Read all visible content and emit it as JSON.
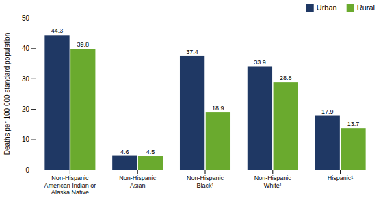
{
  "chart_data": {
    "type": "bar",
    "categories": [
      "Non-Hispanic\nAmerican Indian or\nAlaska Native",
      "Non-Hispanic\nAsian",
      "Non-Hispanic\nBlack¹",
      "Non-Hispanic\nWhite¹",
      "Hispanic¹"
    ],
    "series": [
      {
        "name": "Urban",
        "color": "#1f3864",
        "values": [
          44.3,
          4.6,
          37.4,
          33.9,
          17.9
        ]
      },
      {
        "name": "Rural",
        "color": "#6aaa2e",
        "values": [
          39.8,
          4.5,
          18.9,
          28.8,
          13.7
        ]
      }
    ],
    "y_label": "Deaths per 100,000 standard population",
    "ylim": [
      0,
      50
    ],
    "yticks": [
      0,
      10,
      20,
      30,
      40,
      50
    ],
    "grid": false,
    "legend": "upper right",
    "data_labels": true
  }
}
